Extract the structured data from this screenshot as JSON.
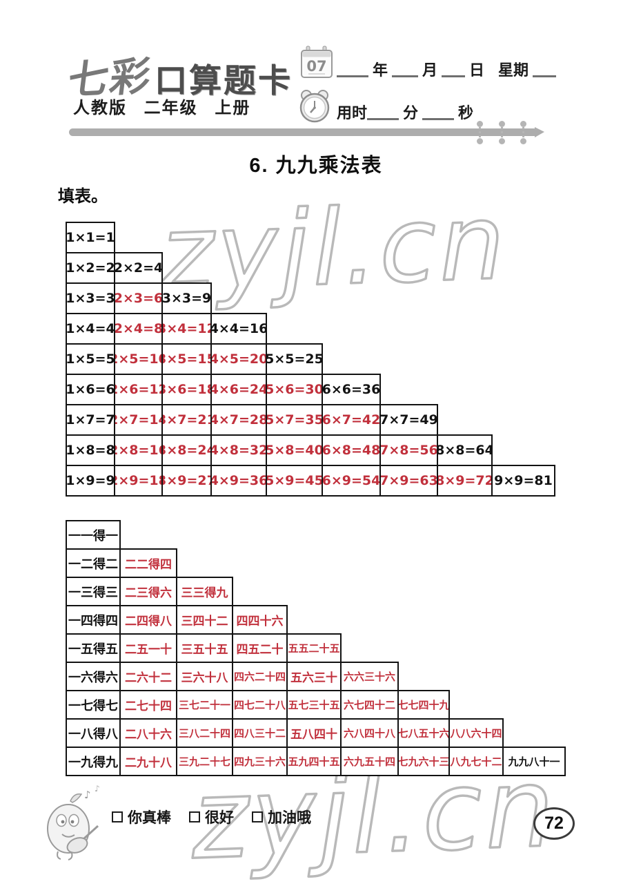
{
  "header": {
    "logo": {
      "part1": "七彩",
      "part2": "口算题卡"
    },
    "edition": "人教版 二年级 上册",
    "calendar_day": "07",
    "date_line": {
      "year_label": "年",
      "month_label": "月",
      "day_label": "日",
      "week_label": "星期"
    },
    "time_line": {
      "prefix": "用时",
      "minutes_label": "分",
      "seconds_label": "秒"
    }
  },
  "title": "6. 九九乘法表",
  "instruction": "填表。",
  "multiplication_table": {
    "rows": [
      [
        {
          "text": "1×1=1",
          "given": true
        }
      ],
      [
        {
          "text": "1×2=2",
          "given": true
        },
        {
          "text": "2×2=4",
          "given": true
        }
      ],
      [
        {
          "text": "1×3=3",
          "given": true
        },
        {
          "text": "2×3=6",
          "given": false
        },
        {
          "text": "3×3=9",
          "given": true
        }
      ],
      [
        {
          "text": "1×4=4",
          "given": true
        },
        {
          "text": "2×4=8",
          "given": false
        },
        {
          "text": "3×4=12",
          "given": false
        },
        {
          "text": "4×4=16",
          "given": true
        }
      ],
      [
        {
          "text": "1×5=5",
          "given": true
        },
        {
          "text": "2×5=10",
          "given": false
        },
        {
          "text": "3×5=15",
          "given": false
        },
        {
          "text": "4×5=20",
          "given": false
        },
        {
          "text": "5×5=25",
          "given": true
        }
      ],
      [
        {
          "text": "1×6=6",
          "given": true
        },
        {
          "text": "2×6=12",
          "given": false
        },
        {
          "text": "3×6=18",
          "given": false
        },
        {
          "text": "4×6=24",
          "given": false
        },
        {
          "text": "5×6=30",
          "given": false
        },
        {
          "text": "6×6=36",
          "given": true
        }
      ],
      [
        {
          "text": "1×7=7",
          "given": true
        },
        {
          "text": "2×7=14",
          "given": false
        },
        {
          "text": "3×7=21",
          "given": false
        },
        {
          "text": "4×7=28",
          "given": false
        },
        {
          "text": "5×7=35",
          "given": false
        },
        {
          "text": "6×7=42",
          "given": false
        },
        {
          "text": "7×7=49",
          "given": true
        }
      ],
      [
        {
          "text": "1×8=8",
          "given": true
        },
        {
          "text": "2×8=16",
          "given": false
        },
        {
          "text": "3×8=24",
          "given": false
        },
        {
          "text": "4×8=32",
          "given": false
        },
        {
          "text": "5×8=40",
          "given": false
        },
        {
          "text": "6×8=48",
          "given": false
        },
        {
          "text": "7×8=56",
          "given": false
        },
        {
          "text": "8×8=64",
          "given": true
        }
      ],
      [
        {
          "text": "1×9=9",
          "given": true
        },
        {
          "text": "2×9=18",
          "given": false
        },
        {
          "text": "3×9=27",
          "given": false
        },
        {
          "text": "4×9=36",
          "given": false
        },
        {
          "text": "5×9=45",
          "given": false
        },
        {
          "text": "6×9=54",
          "given": false
        },
        {
          "text": "7×9=63",
          "given": false
        },
        {
          "text": "8×9=72",
          "given": false
        },
        {
          "text": "9×9=81",
          "given": true
        }
      ]
    ]
  },
  "rhyme_table": {
    "rows": [
      [
        {
          "text": "一一得一",
          "given": true
        }
      ],
      [
        {
          "text": "一二得二",
          "given": true
        },
        {
          "text": "二二得四",
          "given": false
        }
      ],
      [
        {
          "text": "一三得三",
          "given": true
        },
        {
          "text": "二三得六",
          "given": false
        },
        {
          "text": "三三得九",
          "given": false
        }
      ],
      [
        {
          "text": "一四得四",
          "given": true
        },
        {
          "text": "二四得八",
          "given": false
        },
        {
          "text": "三四十二",
          "given": false
        },
        {
          "text": "四四十六",
          "given": false
        }
      ],
      [
        {
          "text": "一五得五",
          "given": true
        },
        {
          "text": "二五一十",
          "given": false
        },
        {
          "text": "三五十五",
          "given": false
        },
        {
          "text": "四五二十",
          "given": false
        },
        {
          "text": "五五二十五",
          "given": false
        }
      ],
      [
        {
          "text": "一六得六",
          "given": true
        },
        {
          "text": "二六十二",
          "given": false
        },
        {
          "text": "三六十八",
          "given": false
        },
        {
          "text": "四六二十四",
          "given": false
        },
        {
          "text": "五六三十",
          "given": false
        },
        {
          "text": "六六三十六",
          "given": false
        }
      ],
      [
        {
          "text": "一七得七",
          "given": true
        },
        {
          "text": "二七十四",
          "given": false
        },
        {
          "text": "三七二十一",
          "given": false
        },
        {
          "text": "四七二十八",
          "given": false
        },
        {
          "text": "五七三十五",
          "given": false
        },
        {
          "text": "六七四十二",
          "given": false
        },
        {
          "text": "七七四十九",
          "given": false
        }
      ],
      [
        {
          "text": "一八得八",
          "given": true
        },
        {
          "text": "二八十六",
          "given": false
        },
        {
          "text": "三八二十四",
          "given": false
        },
        {
          "text": "四八三十二",
          "given": false
        },
        {
          "text": "五八四十",
          "given": false
        },
        {
          "text": "六八四十八",
          "given": false
        },
        {
          "text": "七八五十六",
          "given": false
        },
        {
          "text": "八八六十四",
          "given": false
        }
      ],
      [
        {
          "text": "一九得九",
          "given": true
        },
        {
          "text": "二九十八",
          "given": false
        },
        {
          "text": "三九二十七",
          "given": false
        },
        {
          "text": "四九三十六",
          "given": false
        },
        {
          "text": "五九四十五",
          "given": false
        },
        {
          "text": "六九五十四",
          "given": false
        },
        {
          "text": "七九六十三",
          "given": false
        },
        {
          "text": "八九七十二",
          "given": false
        },
        {
          "text": "九九八十一",
          "given": true
        }
      ]
    ]
  },
  "footer": {
    "checkboxes": [
      "你真棒",
      "很好",
      "加油哦"
    ],
    "page_number": "72"
  },
  "watermark": {
    "text": "zyjl.cn"
  },
  "colors": {
    "answer_red": "#c1303c",
    "ink": "#111111",
    "watermark_gray": "#b9b9b9"
  }
}
